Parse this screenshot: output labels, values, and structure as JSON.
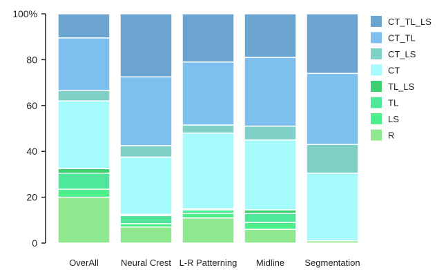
{
  "chart_data": {
    "type": "bar",
    "stacked": true,
    "categories": [
      "OverAll",
      "Neural Crest",
      "L-R Patterning",
      "Midline",
      "Segmentation"
    ],
    "ylim": [
      0,
      100
    ],
    "yticks": [
      0,
      20,
      40,
      60,
      80,
      100
    ],
    "ytick_labels": [
      "0",
      "20",
      "40",
      "60",
      "80",
      "100%"
    ],
    "legend_position": "right",
    "series": [
      {
        "name": "R",
        "color": "#90e88e",
        "values": [
          20,
          7,
          11,
          6,
          1
        ]
      },
      {
        "name": "LS",
        "color": "#4cf08a",
        "values": [
          3.5,
          1.5,
          2,
          3,
          0
        ]
      },
      {
        "name": "TL",
        "color": "#4fe89a",
        "values": [
          7,
          3.5,
          1.5,
          4,
          0
        ]
      },
      {
        "name": "TL_LS",
        "color": "#3ecf6e",
        "values": [
          2,
          0.5,
          0.5,
          1.5,
          0
        ]
      },
      {
        "name": "CT",
        "color": "#a6fbfc",
        "values": [
          29.5,
          25,
          33,
          30.5,
          29.5
        ]
      },
      {
        "name": "CT_LS",
        "color": "#7fd1c8",
        "values": [
          4.5,
          5,
          3.5,
          6,
          12.5
        ]
      },
      {
        "name": "CT_TL",
        "color": "#7dc0ef",
        "values": [
          23,
          30,
          27.5,
          30,
          31
        ]
      },
      {
        "name": "CT_TL_LS",
        "color": "#6aa4cf",
        "values": [
          10.5,
          27.5,
          21,
          19,
          26
        ]
      }
    ],
    "legend_order": [
      "CT_TL_LS",
      "CT_TL",
      "CT_LS",
      "CT",
      "TL_LS",
      "TL",
      "LS",
      "R"
    ]
  }
}
